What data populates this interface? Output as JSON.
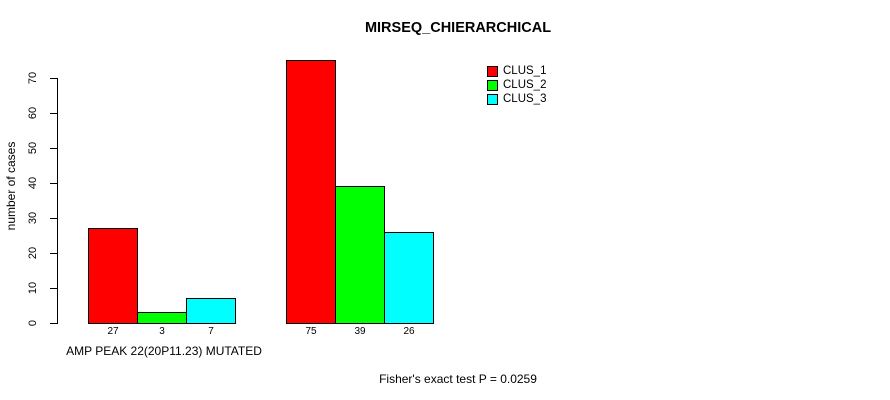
{
  "title": "MIRSEQ_CHIERARCHICAL",
  "footnote": "Fisher's exact test P = 0.0259",
  "chart_data": {
    "type": "bar",
    "title": "MIRSEQ_CHIERARCHICAL",
    "xlabel": "AMP PEAK 22(20P11.23) MUTATED",
    "ylabel": "number of cases",
    "annotation": "Fisher's exact test P = 0.0259",
    "categories": [
      "AMP PEAK 22(20P11.23) MUTATED",
      ""
    ],
    "series": [
      {
        "name": "CLUS_1",
        "color": "#ff0000",
        "values": [
          27,
          75
        ]
      },
      {
        "name": "CLUS_2",
        "color": "#00ff00",
        "values": [
          3,
          39
        ]
      },
      {
        "name": "CLUS_3",
        "color": "#00ffff",
        "values": [
          7,
          26
        ]
      }
    ],
    "bar_value_labels": [
      [
        27,
        3,
        7
      ],
      [
        75,
        39,
        26
      ]
    ],
    "yticks": [
      0,
      10,
      20,
      30,
      40,
      50,
      60,
      70
    ],
    "ylim": [
      0,
      70
    ],
    "grid": false,
    "legend_position": "top-right",
    "bar_border_color": "#000000",
    "background_color": "#ffffff"
  }
}
